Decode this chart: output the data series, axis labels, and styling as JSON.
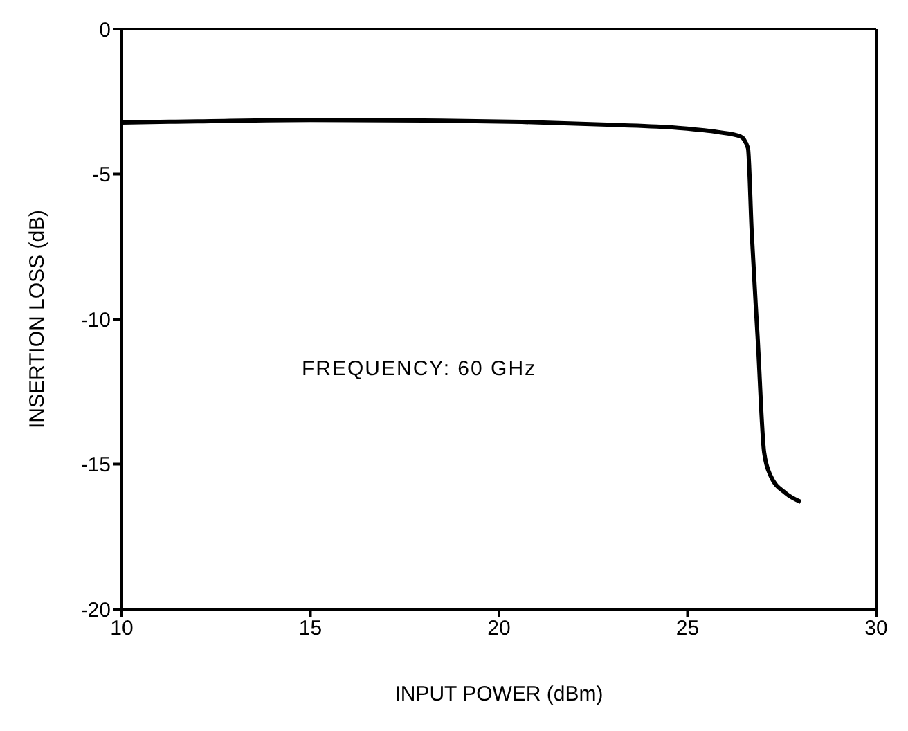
{
  "chart_data": {
    "type": "line",
    "xlabel": "INPUT POWER (dBm)",
    "ylabel": "INSERTION LOSS (dB)",
    "annotations": [
      "FREQUENCY: 60 GHz"
    ],
    "xlim": [
      10,
      30
    ],
    "xticks": [
      10,
      15,
      20,
      25,
      30
    ],
    "ylim": [
      -20,
      0
    ],
    "yticks": [
      -20,
      -15,
      -10,
      -5,
      0
    ],
    "x": [
      10,
      12,
      15,
      18,
      20.6,
      23,
      24.7,
      25.8,
      26.4,
      26.6,
      26.7,
      26.86,
      27.03,
      27.2,
      27.6,
      28.0
    ],
    "series": [
      {
        "color": "#000000",
        "values": [
          -3.22,
          -3.18,
          -3.13,
          -3.15,
          -3.2,
          -3.3,
          -3.4,
          -3.55,
          -3.7,
          -4.1,
          -7.0,
          -10.7,
          -14.6,
          -15.4,
          -16.0,
          -16.3
        ]
      }
    ],
    "grid": false,
    "legend": false,
    "marker": "none",
    "line_style": "solid"
  }
}
